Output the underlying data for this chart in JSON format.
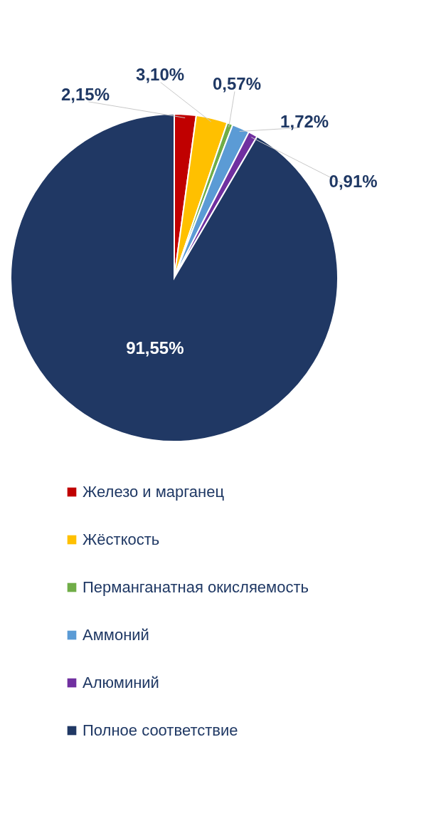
{
  "chart_data": {
    "type": "pie",
    "categories": [
      "Железо и марганец",
      "Жёсткость",
      "Перманганатная окисляемость",
      "Аммоний",
      "Алюминий",
      "Полное соответствие"
    ],
    "values": [
      2.15,
      3.1,
      0.57,
      1.72,
      0.91,
      91.55
    ],
    "colors": [
      "#c00000",
      "#ffc000",
      "#70ad47",
      "#5b9bd5",
      "#7030a0",
      "#203864"
    ],
    "value_labels": [
      "2,15%",
      "3,10%",
      "0,57%",
      "1,72%",
      "0,91%",
      "91,55%"
    ],
    "legend": "bottom"
  }
}
